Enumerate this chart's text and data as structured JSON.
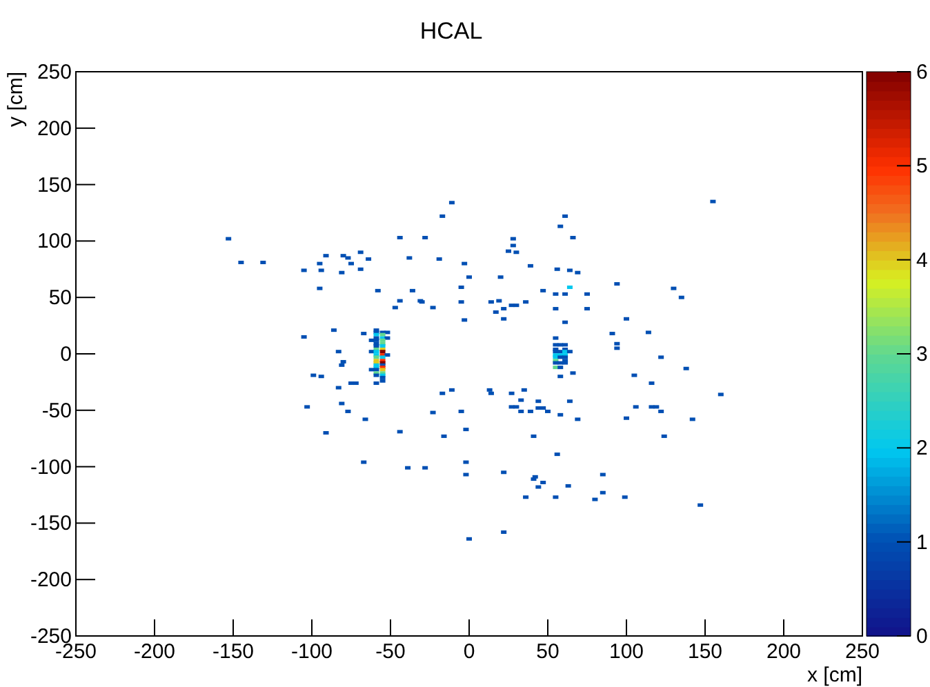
{
  "chart_data": {
    "type": "scatter",
    "title": "HCAL",
    "xlabel": "x [cm]",
    "ylabel": "y [cm]",
    "marker": "square",
    "grid": false,
    "xlim": [
      -250,
      250
    ],
    "ylim": [
      -250,
      250
    ],
    "xticks": [
      -250,
      -200,
      -150,
      -100,
      -50,
      0,
      50,
      100,
      150,
      200,
      250
    ],
    "yticks": [
      -250,
      -200,
      -150,
      -100,
      -50,
      0,
      50,
      100,
      150,
      200,
      250
    ],
    "clim": [
      0,
      6
    ],
    "cticks": [
      0,
      1,
      2,
      3,
      4,
      5,
      6
    ],
    "x": [
      -11,
      -17,
      -153,
      -44,
      -28,
      -145,
      -131,
      -91,
      -80,
      -69,
      -77,
      -64,
      -95,
      -75,
      -38,
      -19,
      -3,
      -105,
      -94,
      -81,
      -69,
      0,
      -95,
      -58,
      -36,
      -5,
      -44,
      -31,
      -30,
      -5,
      -47,
      -23,
      -3,
      -86,
      -105,
      -67,
      -83,
      -80,
      -81,
      -99,
      -94,
      -75,
      -72,
      -83,
      -103,
      -81,
      -77,
      -66,
      -91,
      -44,
      -17,
      -11,
      -23,
      -5,
      -2,
      -16,
      -67,
      -39,
      -28,
      -2,
      -2,
      0,
      155,
      61,
      58,
      28,
      66,
      28,
      25,
      30,
      39,
      56,
      64,
      69,
      20,
      94,
      64,
      130,
      135,
      47,
      55,
      61,
      75,
      14,
      19,
      27,
      30,
      36,
      22,
      17,
      55,
      75,
      22,
      61,
      100,
      114,
      91,
      94,
      55,
      122,
      66,
      58,
      105,
      138,
      116,
      160,
      13,
      14,
      27,
      35,
      33,
      44,
      64,
      27,
      30,
      44,
      47,
      33,
      39,
      50,
      58,
      69,
      106,
      116,
      119,
      122,
      100,
      142,
      41,
      124,
      56,
      22,
      41,
      42,
      47,
      44,
      63,
      85,
      85,
      80,
      99,
      36,
      55,
      147,
      22,
      94,
      -59,
      -59,
      -55,
      -52,
      -59,
      -55,
      -59,
      -55,
      -52,
      -62,
      -59,
      -55,
      -59,
      -55,
      -59,
      -55,
      -59,
      -55,
      -62,
      -59,
      -55,
      -59,
      -55,
      -52,
      -59,
      -55,
      -59,
      -55,
      -59,
      -55,
      -59,
      -55,
      -59,
      -55,
      -62,
      -59,
      -55,
      -59,
      -55,
      -59,
      -55,
      -55,
      -55,
      -59,
      55,
      58,
      61,
      55,
      61,
      55,
      58,
      61,
      64,
      55,
      58,
      61,
      55,
      58,
      61,
      55,
      61,
      55,
      58,
      61,
      55,
      58
    ],
    "values": [
      134,
      122,
      102,
      103,
      103,
      81,
      81,
      87,
      87,
      90,
      85,
      84,
      80,
      80,
      85,
      84,
      80,
      74,
      74,
      72,
      75,
      68,
      58,
      56,
      56,
      59,
      47,
      47,
      46,
      46,
      41,
      41,
      30,
      21,
      15,
      18,
      2,
      -7,
      -10,
      -19,
      -20,
      -26,
      -26,
      -30,
      -47,
      -44,
      -51,
      -58,
      -70,
      -69,
      -35,
      -32,
      -52,
      -51,
      -67,
      -73,
      -96,
      -101,
      -101,
      -96,
      -107,
      -164,
      135,
      122,
      113,
      102,
      103,
      96,
      91,
      90,
      78,
      75,
      74,
      72,
      68,
      62,
      59,
      58,
      50,
      56,
      53,
      53,
      53,
      46,
      47,
      43,
      43,
      46,
      40,
      37,
      40,
      40,
      31,
      28,
      31,
      19,
      18,
      9,
      14,
      -3,
      -17,
      -20,
      -19,
      -13,
      -26,
      -36,
      -32,
      -35,
      -35,
      -32,
      -41,
      -42,
      -42,
      -47,
      -47,
      -48,
      -48,
      -51,
      -51,
      -51,
      -54,
      -58,
      -47,
      -47,
      -47,
      -51,
      -57,
      -58,
      -73,
      -73,
      -89,
      -105,
      -111,
      -109,
      -114,
      -118,
      -117,
      -107,
      -123,
      -129,
      -127,
      -127,
      -127,
      -134,
      -158,
      5,
      21,
      19,
      19,
      19,
      17,
      17,
      14,
      14,
      14,
      12,
      12,
      12,
      9,
      9,
      7,
      7,
      4,
      4,
      2,
      2,
      2,
      -1,
      -1,
      -1,
      -3,
      -3,
      -6,
      -6,
      -8,
      -8,
      -10,
      -10,
      -12,
      -12,
      -14,
      -14,
      -14,
      -17,
      -17,
      -19,
      -19,
      -21,
      -24,
      -26,
      8,
      8,
      8,
      4,
      4,
      2,
      2,
      2,
      2,
      -1,
      -1,
      -1,
      -3,
      -3,
      -3,
      -6,
      -6,
      -8,
      -8,
      -8,
      -12,
      -12
    ],
    "cvalues": [
      1,
      1,
      1,
      1,
      1,
      1,
      1,
      1,
      1,
      1,
      1,
      1,
      1,
      1,
      1,
      1,
      1,
      1,
      1,
      1,
      1,
      1,
      1,
      1,
      1,
      1,
      1,
      1,
      1,
      1,
      1,
      1,
      1,
      1,
      1,
      1,
      1,
      1,
      1,
      1,
      1,
      1,
      1,
      1,
      1,
      1,
      1,
      1,
      1,
      1,
      1,
      1,
      1,
      1,
      1,
      1,
      1,
      1,
      1,
      1,
      1,
      1,
      1,
      1,
      1,
      1,
      1,
      1,
      1,
      1,
      1,
      1,
      1,
      1,
      1,
      1,
      2,
      1,
      1,
      1,
      1,
      1,
      1,
      1,
      1,
      1,
      1,
      1,
      1,
      1,
      1,
      1,
      1,
      1,
      1,
      1,
      1,
      1,
      1,
      1,
      1,
      1,
      1,
      1,
      1,
      1,
      1,
      1,
      1,
      1,
      1,
      1,
      1,
      1,
      1,
      1,
      1,
      1,
      1,
      1,
      1,
      1,
      1,
      1,
      1,
      1,
      1,
      1,
      1,
      1,
      1,
      1,
      1,
      1,
      1,
      1,
      1,
      1,
      1,
      1,
      1,
      1,
      1,
      1,
      1,
      1,
      1,
      1,
      1,
      1,
      2,
      3,
      1,
      2,
      1,
      1,
      1,
      3,
      1,
      3,
      1,
      2,
      3,
      4,
      1,
      2,
      6,
      2,
      5,
      1,
      3,
      2,
      4,
      5,
      4,
      6,
      2,
      1,
      2,
      5,
      1,
      1,
      4,
      3,
      3,
      1,
      2,
      1,
      1,
      1,
      1,
      1,
      1,
      1,
      1,
      1,
      1,
      2,
      1,
      2,
      2,
      2,
      2,
      1,
      1,
      3,
      1,
      1,
      1,
      1,
      3,
      1
    ]
  }
}
